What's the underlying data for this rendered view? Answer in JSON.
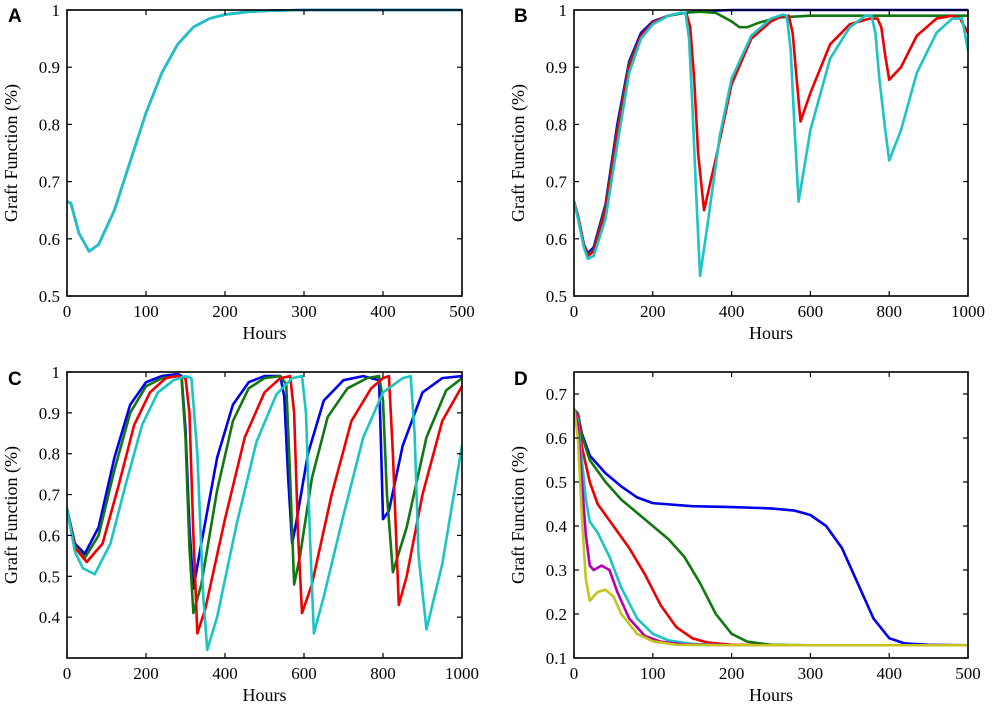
{
  "colors": {
    "blue": "#0000ee",
    "green": "#117711",
    "red": "#ee0000",
    "cyan": "#1cc4c4",
    "magenta": "#b400b4",
    "olive": "#c4c41c"
  },
  "chart_data": [
    {
      "type": "line",
      "panel": "A",
      "title": "",
      "xlabel": "Hours",
      "ylabel": "Graft Function (%)",
      "xlim": [
        0,
        500
      ],
      "ylim": [
        0.5,
        1.0
      ],
      "xticks": [
        0,
        100,
        200,
        300,
        400,
        500
      ],
      "yticks": [
        0.5,
        0.6,
        0.7,
        0.8,
        0.9,
        1.0
      ],
      "xtick_labels": [
        "0",
        "100",
        "200",
        "300",
        "400",
        "500"
      ],
      "ytick_labels": [
        "0.5",
        "0.6",
        "0.7",
        "0.8",
        "0.9",
        "1"
      ],
      "series": [
        {
          "name": "blue",
          "color": "#0000ee",
          "x": [
            0,
            5,
            15,
            28,
            40,
            60,
            80,
            100,
            120,
            140,
            160,
            180,
            200,
            230,
            260,
            300,
            350,
            400,
            450,
            500
          ],
          "y": [
            0.665,
            0.662,
            0.61,
            0.578,
            0.59,
            0.65,
            0.735,
            0.82,
            0.89,
            0.94,
            0.97,
            0.985,
            0.992,
            0.997,
            0.999,
            1.0,
            1.0,
            1.0,
            1.0,
            1.0
          ]
        },
        {
          "name": "cyan",
          "color": "#1cc4c4",
          "x": [
            0,
            5,
            15,
            28,
            40,
            60,
            80,
            100,
            120,
            140,
            160,
            180,
            200,
            230,
            260,
            300,
            350,
            400,
            450,
            500
          ],
          "y": [
            0.665,
            0.662,
            0.61,
            0.578,
            0.59,
            0.65,
            0.735,
            0.82,
            0.89,
            0.94,
            0.97,
            0.985,
            0.992,
            0.997,
            0.999,
            1.0,
            1.0,
            1.0,
            1.0,
            1.0
          ]
        }
      ]
    },
    {
      "type": "line",
      "panel": "B",
      "title": "",
      "xlabel": "Hours",
      "ylabel": "Graft Function (%)",
      "xlim": [
        0,
        1000
      ],
      "ylim": [
        0.5,
        1.0
      ],
      "xticks": [
        0,
        200,
        400,
        600,
        800,
        1000
      ],
      "yticks": [
        0.5,
        0.6,
        0.7,
        0.8,
        0.9,
        1.0
      ],
      "xtick_labels": [
        "0",
        "200",
        "400",
        "600",
        "800",
        "1000"
      ],
      "ytick_labels": [
        "0.5",
        "0.6",
        "0.7",
        "0.8",
        "0.9",
        "1"
      ],
      "series": [
        {
          "name": "blue",
          "color": "#0000ee",
          "x": [
            0,
            10,
            25,
            35,
            50,
            80,
            110,
            140,
            170,
            200,
            240,
            280,
            320,
            400,
            500,
            600,
            700,
            800,
            900,
            1000
          ],
          "y": [
            0.665,
            0.64,
            0.59,
            0.575,
            0.585,
            0.66,
            0.8,
            0.91,
            0.96,
            0.98,
            0.99,
            0.995,
            0.998,
            1.0,
            1.0,
            1.0,
            1.0,
            1.0,
            1.0,
            1.0
          ]
        },
        {
          "name": "green",
          "color": "#117711",
          "x": [
            0,
            10,
            25,
            35,
            50,
            80,
            110,
            140,
            170,
            200,
            240,
            280,
            320,
            360,
            400,
            420,
            440,
            470,
            520,
            600,
            700,
            800,
            900,
            1000
          ],
          "y": [
            0.665,
            0.64,
            0.59,
            0.572,
            0.58,
            0.655,
            0.79,
            0.905,
            0.955,
            0.978,
            0.99,
            0.995,
            0.997,
            0.995,
            0.98,
            0.97,
            0.97,
            0.978,
            0.987,
            0.99,
            0.99,
            0.99,
            0.99,
            0.99
          ]
        },
        {
          "name": "red",
          "color": "#ee0000",
          "x": [
            0,
            10,
            25,
            35,
            50,
            80,
            110,
            140,
            170,
            200,
            240,
            270,
            285,
            295,
            305,
            315,
            330,
            360,
            400,
            450,
            500,
            530,
            545,
            555,
            565,
            575,
            600,
            650,
            700,
            750,
            770,
            780,
            790,
            800,
            830,
            870,
            920,
            960,
            980,
            1000
          ],
          "y": [
            0.665,
            0.64,
            0.59,
            0.57,
            0.578,
            0.65,
            0.785,
            0.9,
            0.955,
            0.978,
            0.99,
            0.995,
            0.995,
            0.97,
            0.88,
            0.75,
            0.65,
            0.74,
            0.87,
            0.95,
            0.98,
            0.99,
            0.99,
            0.96,
            0.88,
            0.805,
            0.855,
            0.94,
            0.975,
            0.985,
            0.985,
            0.97,
            0.92,
            0.878,
            0.9,
            0.955,
            0.985,
            0.99,
            0.985,
            0.96
          ]
        },
        {
          "name": "cyan",
          "color": "#1cc4c4",
          "x": [
            0,
            10,
            25,
            35,
            50,
            80,
            110,
            140,
            170,
            200,
            240,
            270,
            283,
            292,
            300,
            310,
            320,
            340,
            370,
            400,
            450,
            500,
            530,
            540,
            550,
            560,
            570,
            600,
            650,
            700,
            740,
            755,
            765,
            775,
            790,
            800,
            830,
            870,
            920,
            960,
            985,
            1000
          ],
          "y": [
            0.665,
            0.635,
            0.585,
            0.565,
            0.57,
            0.635,
            0.765,
            0.89,
            0.95,
            0.975,
            0.99,
            0.995,
            0.995,
            0.95,
            0.84,
            0.68,
            0.535,
            0.63,
            0.78,
            0.88,
            0.955,
            0.985,
            0.992,
            0.99,
            0.93,
            0.79,
            0.665,
            0.79,
            0.915,
            0.97,
            0.99,
            0.99,
            0.96,
            0.88,
            0.79,
            0.737,
            0.79,
            0.89,
            0.96,
            0.985,
            0.985,
            0.93
          ]
        }
      ]
    },
    {
      "type": "line",
      "panel": "C",
      "title": "",
      "xlabel": "Hours",
      "ylabel": "Graft Function (%)",
      "xlim": [
        0,
        1000
      ],
      "ylim": [
        0.3,
        1.0
      ],
      "xticks": [
        0,
        200,
        400,
        600,
        800,
        1000
      ],
      "yticks": [
        0.4,
        0.5,
        0.6,
        0.7,
        0.8,
        0.9,
        1.0
      ],
      "xtick_labels": [
        "0",
        "200",
        "400",
        "600",
        "800",
        "1000"
      ],
      "ytick_labels": [
        "0.4",
        "0.5",
        "0.6",
        "0.7",
        "0.8",
        "0.9",
        "1"
      ],
      "series": [
        {
          "name": "blue",
          "color": "#0000ee",
          "x": [
            0,
            20,
            45,
            80,
            120,
            160,
            200,
            240,
            280,
            290,
            300,
            310,
            320,
            340,
            380,
            420,
            460,
            500,
            540,
            550,
            560,
            570,
            580,
            610,
            650,
            700,
            750,
            790,
            795,
            800,
            815,
            850,
            900,
            950,
            1000
          ],
          "y": [
            0.665,
            0.58,
            0.555,
            0.62,
            0.79,
            0.92,
            0.975,
            0.99,
            0.995,
            0.99,
            0.86,
            0.62,
            0.47,
            0.58,
            0.79,
            0.92,
            0.975,
            0.99,
            0.99,
            0.94,
            0.74,
            0.58,
            0.63,
            0.8,
            0.93,
            0.98,
            0.99,
            0.98,
            0.82,
            0.64,
            0.66,
            0.82,
            0.95,
            0.985,
            0.99
          ]
        },
        {
          "name": "green",
          "color": "#117711",
          "x": [
            0,
            20,
            45,
            80,
            120,
            160,
            200,
            240,
            280,
            290,
            300,
            310,
            320,
            340,
            380,
            420,
            460,
            500,
            540,
            555,
            565,
            575,
            590,
            620,
            660,
            710,
            760,
            790,
            800,
            810,
            825,
            860,
            910,
            960,
            1000
          ],
          "y": [
            0.665,
            0.575,
            0.545,
            0.6,
            0.76,
            0.9,
            0.965,
            0.985,
            0.99,
            0.985,
            0.84,
            0.57,
            0.41,
            0.48,
            0.71,
            0.88,
            0.96,
            0.985,
            0.99,
            0.97,
            0.74,
            0.48,
            0.55,
            0.74,
            0.89,
            0.96,
            0.985,
            0.99,
            0.93,
            0.7,
            0.51,
            0.62,
            0.84,
            0.955,
            0.985
          ]
        },
        {
          "name": "red",
          "color": "#ee0000",
          "x": [
            0,
            20,
            50,
            90,
            130,
            170,
            210,
            250,
            280,
            300,
            310,
            320,
            330,
            350,
            400,
            450,
            500,
            540,
            565,
            575,
            585,
            595,
            620,
            670,
            720,
            770,
            800,
            815,
            825,
            840,
            860,
            900,
            950,
            1000
          ],
          "y": [
            0.665,
            0.57,
            0.535,
            0.58,
            0.72,
            0.87,
            0.95,
            0.985,
            0.99,
            0.985,
            0.9,
            0.6,
            0.36,
            0.42,
            0.64,
            0.84,
            0.95,
            0.985,
            0.99,
            0.9,
            0.6,
            0.41,
            0.48,
            0.7,
            0.88,
            0.96,
            0.985,
            0.99,
            0.8,
            0.43,
            0.5,
            0.7,
            0.88,
            0.965
          ]
        },
        {
          "name": "cyan",
          "color": "#1cc4c4",
          "x": [
            0,
            20,
            40,
            70,
            110,
            150,
            190,
            230,
            270,
            300,
            315,
            330,
            345,
            355,
            380,
            430,
            480,
            530,
            570,
            595,
            605,
            615,
            625,
            650,
            700,
            750,
            800,
            850,
            870,
            880,
            890,
            910,
            950,
            1000
          ],
          "y": [
            0.665,
            0.56,
            0.52,
            0.505,
            0.58,
            0.73,
            0.87,
            0.95,
            0.98,
            0.99,
            0.985,
            0.8,
            0.45,
            0.32,
            0.4,
            0.63,
            0.83,
            0.945,
            0.985,
            0.99,
            0.9,
            0.6,
            0.36,
            0.45,
            0.65,
            0.84,
            0.95,
            0.985,
            0.99,
            0.85,
            0.55,
            0.37,
            0.53,
            0.82
          ]
        }
      ]
    },
    {
      "type": "line",
      "panel": "D",
      "title": "",
      "xlabel": "Hours",
      "ylabel": "Graft Function (%)",
      "xlim": [
        0,
        500
      ],
      "ylim": [
        0.1,
        0.75
      ],
      "xticks": [
        0,
        100,
        200,
        300,
        400,
        500
      ],
      "yticks": [
        0.1,
        0.2,
        0.3,
        0.4,
        0.5,
        0.6,
        0.7
      ],
      "xtick_labels": [
        "0",
        "100",
        "200",
        "300",
        "400",
        "500"
      ],
      "ytick_labels": [
        "0.1",
        "0.2",
        "0.3",
        "0.4",
        "0.5",
        "0.6",
        "0.7"
      ],
      "series": [
        {
          "name": "blue",
          "color": "#0000ee",
          "x": [
            0,
            5,
            10,
            20,
            40,
            60,
            80,
            100,
            150,
            200,
            250,
            280,
            300,
            320,
            340,
            360,
            380,
            400,
            420,
            450,
            500
          ],
          "y": [
            0.665,
            0.655,
            0.61,
            0.56,
            0.52,
            0.49,
            0.465,
            0.452,
            0.445,
            0.443,
            0.44,
            0.435,
            0.425,
            0.4,
            0.35,
            0.27,
            0.19,
            0.145,
            0.133,
            0.13,
            0.129
          ]
        },
        {
          "name": "green",
          "color": "#117711",
          "x": [
            0,
            5,
            10,
            20,
            40,
            60,
            80,
            100,
            120,
            140,
            160,
            180,
            200,
            220,
            250,
            300,
            400,
            500
          ],
          "y": [
            0.665,
            0.655,
            0.605,
            0.55,
            0.5,
            0.46,
            0.43,
            0.4,
            0.37,
            0.33,
            0.27,
            0.2,
            0.155,
            0.137,
            0.13,
            0.129,
            0.129,
            0.129
          ]
        },
        {
          "name": "red",
          "color": "#ee0000",
          "x": [
            0,
            5,
            10,
            20,
            30,
            50,
            70,
            90,
            110,
            130,
            150,
            170,
            200,
            250,
            500
          ],
          "y": [
            0.665,
            0.65,
            0.58,
            0.5,
            0.45,
            0.4,
            0.35,
            0.29,
            0.22,
            0.17,
            0.145,
            0.135,
            0.13,
            0.129,
            0.129
          ]
        },
        {
          "name": "cyan",
          "color": "#1cc4c4",
          "x": [
            0,
            5,
            10,
            15,
            20,
            30,
            45,
            60,
            80,
            100,
            120,
            150,
            200,
            500
          ],
          "y": [
            0.665,
            0.64,
            0.55,
            0.46,
            0.41,
            0.385,
            0.33,
            0.26,
            0.19,
            0.155,
            0.14,
            0.132,
            0.129,
            0.129
          ]
        },
        {
          "name": "magenta",
          "color": "#b400b4",
          "x": [
            0,
            5,
            10,
            15,
            20,
            25,
            35,
            45,
            55,
            70,
            90,
            110,
            140,
            200,
            500
          ],
          "y": [
            0.665,
            0.63,
            0.5,
            0.38,
            0.31,
            0.3,
            0.31,
            0.3,
            0.25,
            0.19,
            0.15,
            0.137,
            0.131,
            0.129,
            0.129
          ]
        },
        {
          "name": "olive",
          "color": "#c4c41c",
          "x": [
            0,
            5,
            10,
            15,
            20,
            25,
            30,
            40,
            50,
            60,
            80,
            100,
            130,
            200,
            500
          ],
          "y": [
            0.665,
            0.6,
            0.42,
            0.28,
            0.23,
            0.24,
            0.25,
            0.255,
            0.24,
            0.2,
            0.155,
            0.138,
            0.13,
            0.129,
            0.129
          ]
        }
      ]
    }
  ]
}
